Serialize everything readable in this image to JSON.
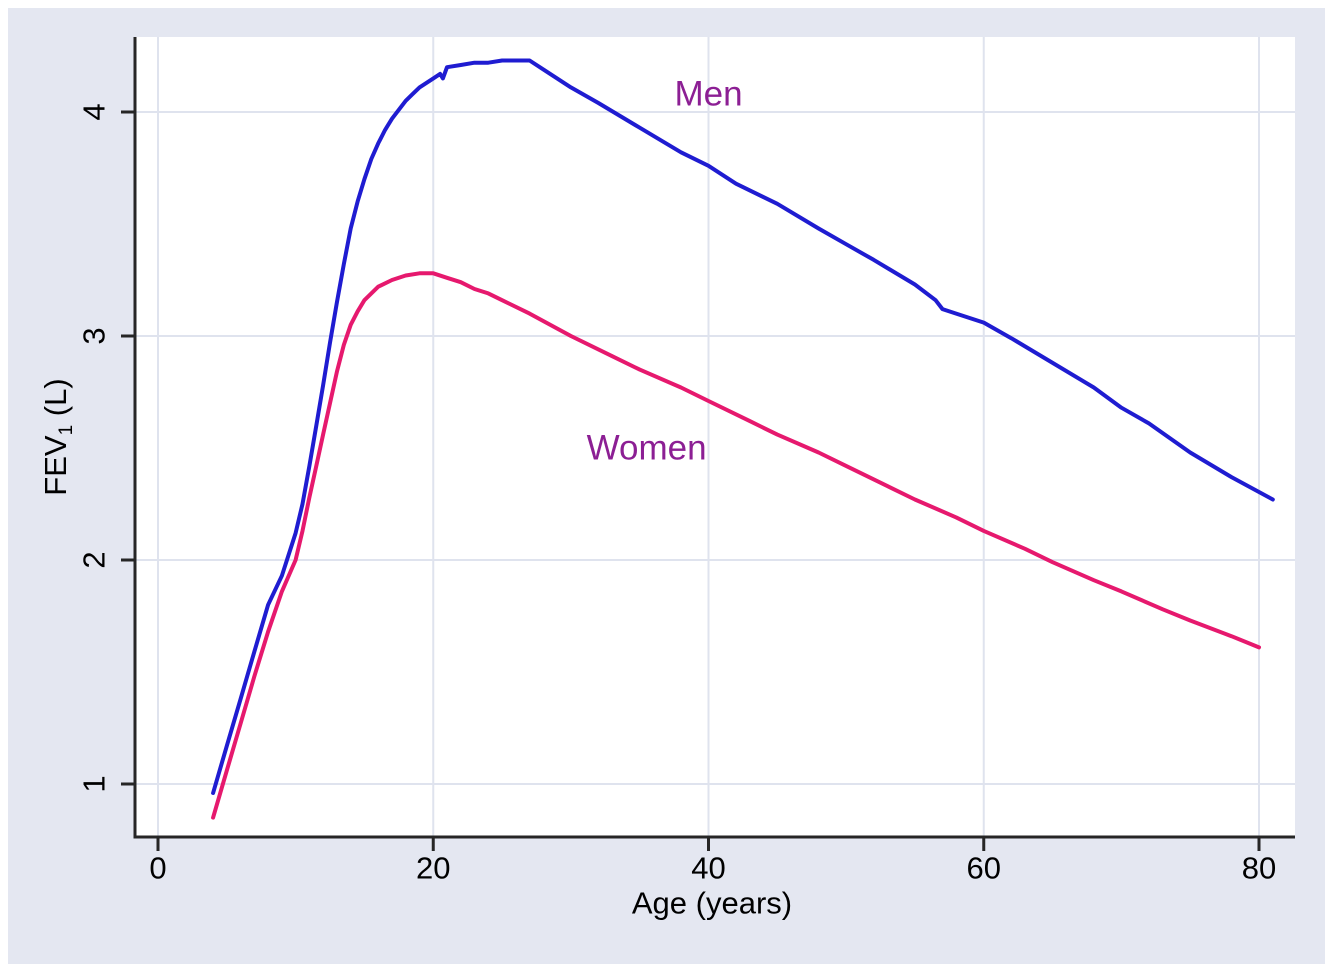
{
  "figure": {
    "outer_background": "#ffffff",
    "board_background": "#e4e7f1",
    "plot_background": "#ffffff",
    "grid_color": "#dfe3ee",
    "axis_color": "#262626",
    "text_color": "#000000",
    "annotation_color": "#8c1f94"
  },
  "chart_data": {
    "type": "line",
    "title": "",
    "xlabel": "Age (years)",
    "ylabel": "FEV₁ (L)",
    "ylabel_parts": {
      "main": "FEV",
      "sub": "1",
      "unit": " (L)"
    },
    "xlim": [
      -1.7,
      82.8
    ],
    "ylim": [
      0.67,
      4.33
    ],
    "x_ticks": [
      0,
      20,
      40,
      60,
      80
    ],
    "x_tick_labels": [
      "0",
      "20",
      "40",
      "60",
      "80"
    ],
    "y_ticks": [
      1,
      2,
      3,
      4
    ],
    "y_tick_labels": [
      "1",
      "2",
      "3",
      "4"
    ],
    "grid": true,
    "legend_position": "inline-annotations",
    "annotations": [
      {
        "text": "Men",
        "x": 40.0,
        "y": 4.08,
        "color": "#8c1f94"
      },
      {
        "text": "Women",
        "x": 35.5,
        "y": 2.5,
        "color": "#8c1f94"
      }
    ],
    "series": [
      {
        "name": "Men",
        "color": "#1f1cd1",
        "points": [
          [
            4,
            0.96
          ],
          [
            5,
            1.17
          ],
          [
            6,
            1.38
          ],
          [
            7,
            1.59
          ],
          [
            8,
            1.8
          ],
          [
            9,
            1.93
          ],
          [
            10,
            2.12
          ],
          [
            10.5,
            2.25
          ],
          [
            11,
            2.42
          ],
          [
            11.5,
            2.6
          ],
          [
            12,
            2.78
          ],
          [
            12.5,
            2.97
          ],
          [
            13,
            3.15
          ],
          [
            13.5,
            3.32
          ],
          [
            14,
            3.48
          ],
          [
            14.5,
            3.6
          ],
          [
            15,
            3.7
          ],
          [
            15.5,
            3.79
          ],
          [
            16,
            3.86
          ],
          [
            16.5,
            3.92
          ],
          [
            17,
            3.97
          ],
          [
            17.5,
            4.01
          ],
          [
            18,
            4.05
          ],
          [
            18.5,
            4.08
          ],
          [
            19,
            4.11
          ],
          [
            19.5,
            4.13
          ],
          [
            20,
            4.15
          ],
          [
            20.5,
            4.17
          ],
          [
            20.7,
            4.15
          ],
          [
            21,
            4.2
          ],
          [
            22,
            4.21
          ],
          [
            23,
            4.22
          ],
          [
            24,
            4.22
          ],
          [
            25,
            4.23
          ],
          [
            26,
            4.23
          ],
          [
            27,
            4.23
          ],
          [
            28,
            4.19
          ],
          [
            30,
            4.11
          ],
          [
            32,
            4.04
          ],
          [
            35,
            3.93
          ],
          [
            38,
            3.82
          ],
          [
            40,
            3.76
          ],
          [
            42,
            3.68
          ],
          [
            45,
            3.59
          ],
          [
            48,
            3.48
          ],
          [
            50,
            3.41
          ],
          [
            52,
            3.34
          ],
          [
            55,
            3.23
          ],
          [
            56.5,
            3.16
          ],
          [
            57,
            3.12
          ],
          [
            58,
            3.1
          ],
          [
            60,
            3.06
          ],
          [
            62,
            2.99
          ],
          [
            65,
            2.88
          ],
          [
            68,
            2.77
          ],
          [
            70,
            2.68
          ],
          [
            72,
            2.61
          ],
          [
            75,
            2.48
          ],
          [
            78,
            2.37
          ],
          [
            81,
            2.27
          ]
        ]
      },
      {
        "name": "Women",
        "color": "#e6196e",
        "points": [
          [
            4,
            0.85
          ],
          [
            5,
            1.06
          ],
          [
            6,
            1.27
          ],
          [
            7,
            1.48
          ],
          [
            8,
            1.68
          ],
          [
            9,
            1.86
          ],
          [
            10,
            2.0
          ],
          [
            10.5,
            2.13
          ],
          [
            11,
            2.28
          ],
          [
            11.5,
            2.42
          ],
          [
            12,
            2.56
          ],
          [
            12.5,
            2.7
          ],
          [
            13,
            2.84
          ],
          [
            13.5,
            2.96
          ],
          [
            14,
            3.05
          ],
          [
            14.5,
            3.11
          ],
          [
            15,
            3.16
          ],
          [
            15.5,
            3.19
          ],
          [
            16,
            3.22
          ],
          [
            17,
            3.25
          ],
          [
            18,
            3.27
          ],
          [
            19,
            3.28
          ],
          [
            20,
            3.28
          ],
          [
            21,
            3.26
          ],
          [
            22,
            3.24
          ],
          [
            23,
            3.21
          ],
          [
            24,
            3.19
          ],
          [
            25,
            3.16
          ],
          [
            27,
            3.1
          ],
          [
            30,
            3.0
          ],
          [
            33,
            2.91
          ],
          [
            35,
            2.85
          ],
          [
            38,
            2.77
          ],
          [
            40,
            2.71
          ],
          [
            43,
            2.62
          ],
          [
            45,
            2.56
          ],
          [
            48,
            2.48
          ],
          [
            50,
            2.42
          ],
          [
            53,
            2.33
          ],
          [
            55,
            2.27
          ],
          [
            58,
            2.19
          ],
          [
            60,
            2.13
          ],
          [
            63,
            2.05
          ],
          [
            65,
            1.99
          ],
          [
            68,
            1.91
          ],
          [
            70,
            1.86
          ],
          [
            73,
            1.78
          ],
          [
            75,
            1.73
          ],
          [
            78,
            1.66
          ],
          [
            80,
            1.61
          ]
        ]
      }
    ]
  }
}
